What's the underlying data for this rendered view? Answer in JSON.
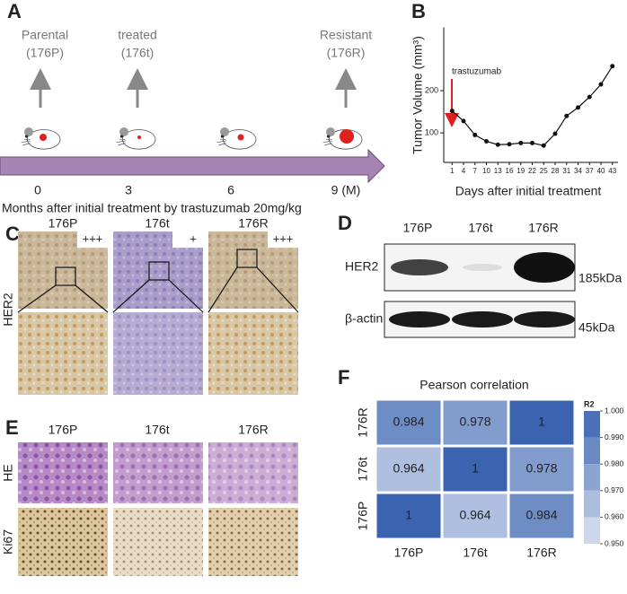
{
  "panels": {
    "A": {
      "label": "A",
      "stages": [
        {
          "name": "Parental",
          "code": "(176P)"
        },
        {
          "name": "treated",
          "code": "(176t)"
        },
        {
          "name": "Resistant",
          "code": "(176R)"
        }
      ],
      "timeline_ticks": [
        "0",
        "3",
        "6",
        "9 (M)"
      ],
      "caption": "Months after initial treatment by trastuzumab 20mg/kg"
    },
    "B": {
      "label": "B"
    },
    "C": {
      "label": "C",
      "columns": [
        "176P",
        "176t",
        "176R"
      ],
      "scores": [
        "+++",
        "+",
        "+++"
      ],
      "row_label": "HER2"
    },
    "D": {
      "label": "D",
      "columns": [
        "176P",
        "176t",
        "176R"
      ],
      "rows": [
        {
          "name": "HER2",
          "size": "185kDa"
        },
        {
          "name": "β-actin",
          "size": "45kDa"
        }
      ]
    },
    "E": {
      "label": "E",
      "columns": [
        "176P",
        "176t",
        "176R"
      ],
      "rows": [
        "HE",
        "Ki67"
      ]
    },
    "F": {
      "label": "F"
    }
  },
  "chart_data": [
    {
      "type": "line",
      "x": [
        1,
        4,
        7,
        10,
        13,
        16,
        19,
        22,
        25,
        28,
        31,
        34,
        37,
        40,
        43
      ],
      "values": [
        152,
        128,
        95,
        80,
        72,
        73,
        76,
        76,
        70,
        98,
        140,
        160,
        185,
        215,
        258
      ],
      "color": "#111111",
      "xlim": [
        0,
        44
      ],
      "xticks": [
        1,
        4,
        7,
        10,
        13,
        16,
        19,
        22,
        25,
        28,
        31,
        34,
        37,
        40,
        43
      ],
      "ylim": [
        30,
        350
      ],
      "yticks": [
        100,
        200
      ],
      "y_label": "Tumor Volume (mm³)",
      "x_label": "Days after initial treatment",
      "annotation": "trastuzumab"
    },
    {
      "type": "heatmap",
      "title": "Pearson correlation",
      "x_categories": [
        "176P",
        "176t",
        "176R"
      ],
      "y_categories": [
        "176R",
        "176t",
        "176P"
      ],
      "values": [
        [
          0.984,
          0.978,
          1
        ],
        [
          0.964,
          1,
          0.978
        ],
        [
          1,
          0.964,
          0.984
        ]
      ],
      "clim": [
        0.95,
        1
      ],
      "cticks": [
        {
          "value": 1,
          "label": "1.000"
        },
        {
          "value": 0.99,
          "label": "0.990"
        },
        {
          "value": 0.98,
          "label": "0.980"
        },
        {
          "value": 0.97,
          "label": "0.970"
        },
        {
          "value": 0.96,
          "label": "0.960"
        },
        {
          "value": 0.95,
          "label": "0.950"
        }
      ],
      "colorbar_title": "R2",
      "low_color": "#dde3f1",
      "high_color": "#3a64b0"
    }
  ]
}
